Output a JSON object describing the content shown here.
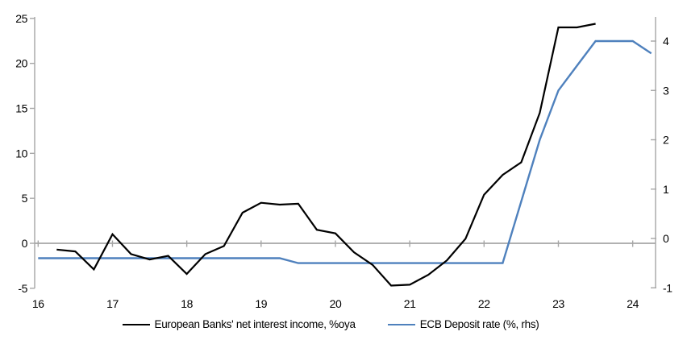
{
  "chart_data": {
    "type": "line",
    "title": "",
    "x_axis": {
      "tick_labels": [
        "16",
        "17",
        "18",
        "19",
        "20",
        "21",
        "22",
        "23",
        "24"
      ],
      "tick_values": [
        16,
        17,
        18,
        19,
        20,
        21,
        22,
        23,
        24
      ],
      "range": [
        15.95,
        24.31
      ]
    },
    "left_y_axis": {
      "tick_labels": [
        "25",
        "20",
        "15",
        "10",
        "5",
        "0",
        "-5"
      ],
      "tick_values": [
        25,
        20,
        15,
        10,
        5,
        0,
        -5
      ],
      "range": [
        -5,
        25.2
      ]
    },
    "right_y_axis": {
      "tick_labels": [
        "4",
        "3",
        "2",
        "1",
        "0",
        "-1"
      ],
      "tick_values": [
        4,
        3,
        2,
        1,
        0,
        -1
      ],
      "range": [
        -1.02,
        4.5
      ]
    },
    "grid": "zero-line-only",
    "legend_position": "bottom-center",
    "series": [
      {
        "name": "European Banks' net interest income, %oya",
        "axis": "left",
        "color": "#000000",
        "x": [
          16.25,
          16.5,
          16.75,
          17.0,
          17.25,
          17.5,
          17.75,
          18.0,
          18.25,
          18.5,
          18.75,
          19.0,
          19.25,
          19.5,
          19.75,
          20.0,
          20.25,
          20.5,
          20.75,
          21.0,
          21.25,
          21.5,
          21.75,
          22.0,
          22.25,
          22.5,
          22.75,
          23.0,
          23.25,
          23.5
        ],
        "values": [
          -0.7,
          -0.9,
          -2.9,
          1.0,
          -1.2,
          -1.8,
          -1.4,
          -3.4,
          -1.2,
          -0.3,
          3.4,
          4.5,
          4.3,
          4.4,
          1.5,
          1.1,
          -1.0,
          -2.4,
          -4.7,
          -4.6,
          -3.5,
          -1.9,
          0.5,
          5.4,
          7.6,
          9.0,
          14.5,
          24.0,
          24.0,
          24.4
        ]
      },
      {
        "name": "ECB Deposit rate (%, rhs)",
        "axis": "right",
        "color": "#4F81BD",
        "x": [
          16.0,
          19.25,
          19.5,
          22.25,
          22.5,
          22.75,
          23.0,
          23.25,
          23.5,
          23.75,
          24.0,
          24.25
        ],
        "values": [
          -0.4,
          -0.4,
          -0.5,
          -0.5,
          0.75,
          2.0,
          3.0,
          3.5,
          4.0,
          4.0,
          4.0,
          3.75
        ]
      }
    ]
  },
  "colors": {
    "axis": "#A6A6A6",
    "zero_line": "#A6A6A6",
    "text": "#000000",
    "background": "#FFFFFF"
  }
}
